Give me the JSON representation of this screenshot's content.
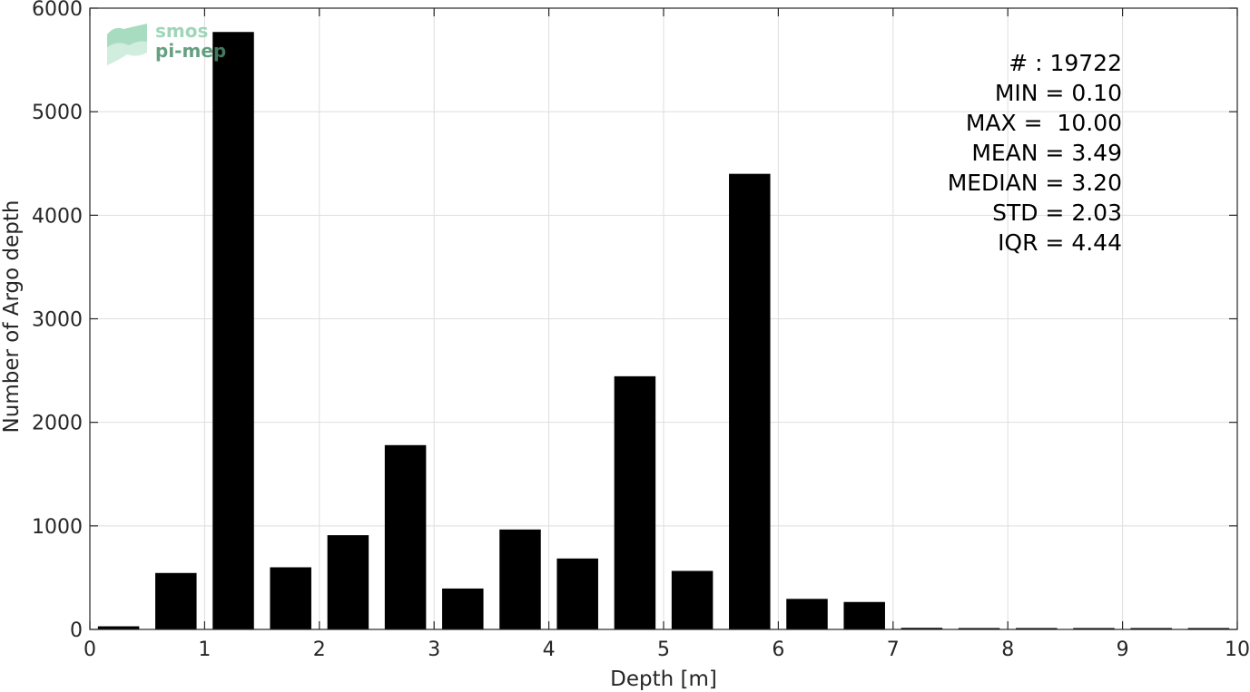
{
  "logo": {
    "line1": "smos",
    "line2": "pi-mep",
    "color_light": "#8fcfae",
    "color_dark": "#4c8f6c"
  },
  "chart_data": {
    "type": "bar",
    "xlabel": "Depth [m]",
    "ylabel": "Number of Argo depth",
    "xlim": [
      0,
      10
    ],
    "ylim": [
      0,
      6000
    ],
    "xticks": [
      0,
      1,
      2,
      3,
      4,
      5,
      6,
      7,
      8,
      9,
      10
    ],
    "yticks": [
      0,
      1000,
      2000,
      3000,
      4000,
      5000,
      6000
    ],
    "grid": true,
    "bin_width": 0.5,
    "bar_color": "#000000",
    "x": [
      0.25,
      0.75,
      1.25,
      1.75,
      2.25,
      2.75,
      3.25,
      3.75,
      4.25,
      4.75,
      5.25,
      5.75,
      6.25,
      6.75,
      7.25,
      7.75,
      8.25,
      8.75,
      9.25,
      9.75
    ],
    "values": [
      30,
      545,
      5770,
      600,
      910,
      1780,
      395,
      965,
      685,
      2445,
      565,
      4400,
      295,
      265,
      15,
      5,
      3,
      3,
      3,
      3
    ],
    "annotations": [
      "# : 19722",
      "MIN = 0.10",
      "MAX =  10.00",
      "MEAN = 3.49",
      "MEDIAN = 3.20",
      "STD = 2.03",
      "IQR = 4.44"
    ]
  }
}
